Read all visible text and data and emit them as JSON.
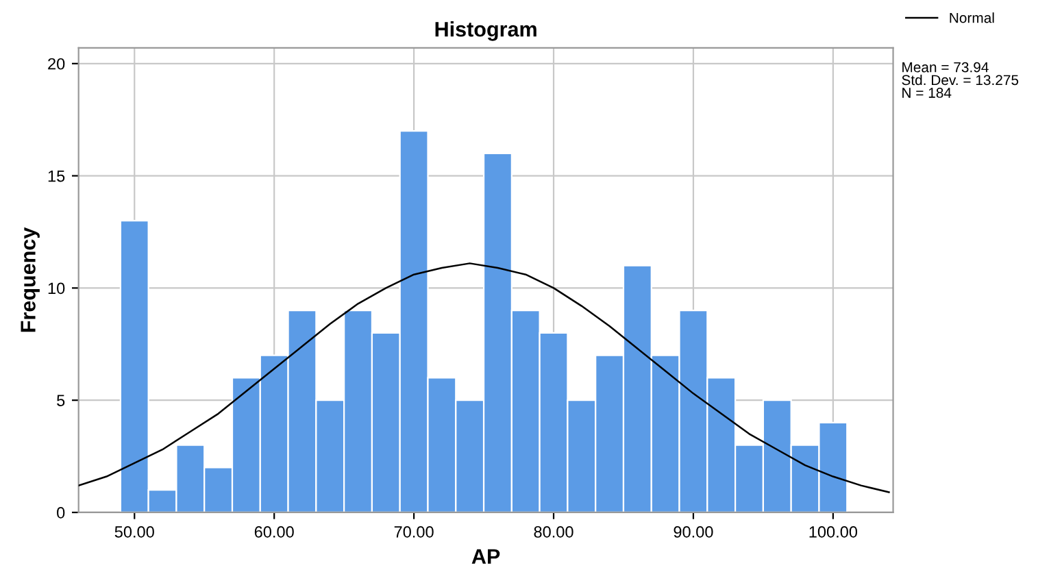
{
  "chart_data": {
    "type": "histogram",
    "title": "Histogram",
    "xlabel": "AP",
    "ylabel": "Frequency",
    "xlim": [
      46,
      104.3
    ],
    "ylim": [
      0,
      20.7
    ],
    "xticks": [
      {
        "value": 50,
        "label": "50.00"
      },
      {
        "value": 60,
        "label": "60.00"
      },
      {
        "value": 70,
        "label": "70.00"
      },
      {
        "value": 80,
        "label": "80.00"
      },
      {
        "value": 90,
        "label": "90.00"
      },
      {
        "value": 100,
        "label": "100.00"
      }
    ],
    "yticks": [
      0,
      5,
      10,
      15,
      20
    ],
    "grid": true,
    "legend": "top right",
    "annotations": [
      "Mean = 73.94\nStd. Dev. = 13.275\nN = 184"
    ],
    "series": [
      {
        "color": "#5b9be6",
        "bins": [
          49,
          51,
          53,
          55,
          57,
          59,
          61,
          63,
          65,
          67,
          69,
          71,
          73,
          75,
          77,
          79,
          81,
          83,
          85,
          87,
          89,
          91,
          93,
          95,
          97,
          99,
          101
        ],
        "values": [
          13,
          1,
          3,
          2,
          6,
          7,
          9,
          5,
          9,
          8,
          17,
          6,
          5,
          16,
          9,
          8,
          5,
          7,
          11,
          7,
          9,
          6,
          3,
          5,
          3,
          4
        ]
      },
      {
        "type": "line",
        "name": "Normal",
        "color": "#000000",
        "x": [
          46,
          48,
          50,
          52,
          54,
          56,
          58,
          60,
          62,
          64,
          66,
          68,
          70,
          72,
          74,
          76,
          78,
          80,
          82,
          84,
          86,
          88,
          90,
          92,
          94,
          96,
          98,
          100,
          102,
          104
        ],
        "values": [
          1.2,
          1.6,
          2.2,
          2.8,
          3.6,
          4.4,
          5.4,
          6.4,
          7.4,
          8.4,
          9.3,
          10.0,
          10.6,
          10.9,
          11.1,
          10.9,
          10.6,
          10.0,
          9.2,
          8.3,
          7.3,
          6.3,
          5.3,
          4.4,
          3.5,
          2.8,
          2.1,
          1.6,
          1.2,
          0.9
        ]
      }
    ]
  }
}
